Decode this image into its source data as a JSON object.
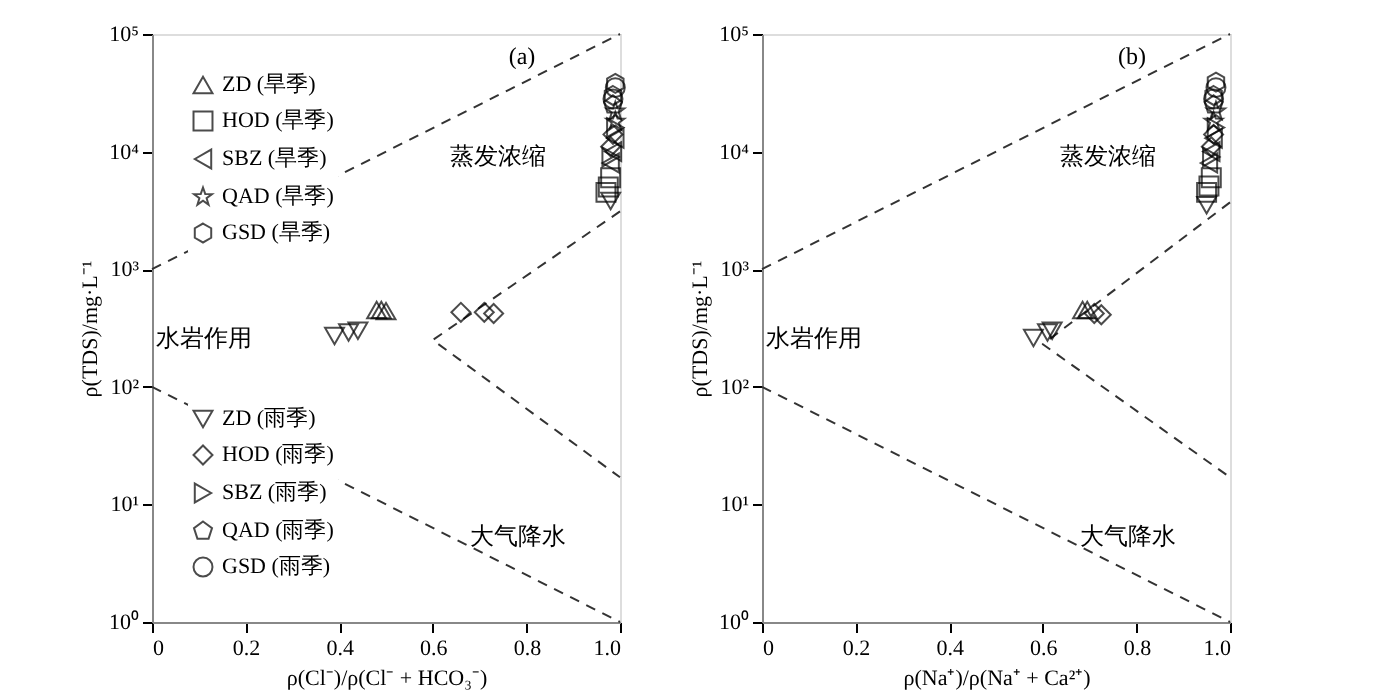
{
  "chart_data": [
    {
      "type": "scatter",
      "xlabel": "ρ(Cl⁻)/ρ(Cl⁻ + HCO₃⁻)",
      "ylabel": "ρ(TDS)/mg·L⁻¹",
      "log": "y",
      "grid": false,
      "legend": "left",
      "xlim": [
        0,
        1
      ],
      "xticks": [
        0,
        0.2,
        0.4,
        0.6,
        0.8,
        {
          "value": 1,
          "label": "1.0"
        }
      ],
      "ylim": [
        1,
        100000
      ],
      "yticks": [
        {
          "value": 1,
          "label": "10⁰"
        },
        {
          "value": 10,
          "label": "10¹"
        },
        {
          "value": 100,
          "label": "10²"
        },
        {
          "value": 1000,
          "label": "10³"
        },
        {
          "value": 10000,
          "label": "10⁴"
        },
        {
          "value": 100000,
          "label": "10⁵"
        }
      ],
      "annotations": [
        "(a)",
        "蒸发浓缩",
        "水岩作用",
        "大气降水"
      ],
      "series": [
        {
          "type": "line",
          "line_style": "dashed",
          "color": "#333333",
          "x": [
            0,
            1
          ],
          "values": [
            1000,
            100000
          ]
        },
        {
          "type": "line",
          "line_style": "dashed",
          "color": "#333333",
          "x": [
            0,
            1
          ],
          "values": [
            100,
            1
          ]
        },
        {
          "type": "line",
          "line_style": "dashed",
          "color": "#333333",
          "x": [
            1,
            0.6,
            1
          ],
          "values": [
            3100,
            250,
            17
          ]
        },
        {
          "name": "ZD (旱季)",
          "marker": "triangle-up",
          "color": "#000000",
          "x": [
            0.48,
            0.49,
            0.5
          ],
          "values": [
            450,
            450,
            440
          ]
        },
        {
          "name": "HOD (旱季)",
          "marker": "square",
          "color": "#000000",
          "x": [
            0.97,
            0.975,
            0.98
          ],
          "values": [
            4500,
            5000,
            6000
          ]
        },
        {
          "name": "SBZ (旱季)",
          "marker": "triangle-left",
          "color": "#000000",
          "x": [
            0.98,
            0.985,
            0.99
          ],
          "values": [
            8000,
            10000,
            13000
          ]
        },
        {
          "name": "QAD (旱季)",
          "marker": "star",
          "color": "#000000",
          "x": [
            0.99,
            0.99
          ],
          "values": [
            18000,
            22000
          ]
        },
        {
          "name": "GSD (旱季)",
          "color": "#000000",
          "x": [
            0.985,
            0.99
          ],
          "values": [
            30000,
            38000
          ]
        },
        {
          "name": "ZD (雨季)",
          "marker": "triangle-down",
          "color": "#000000",
          "x": [
            0.39,
            0.42,
            0.44,
            0.98
          ],
          "values": [
            270,
            290,
            300,
            3800
          ]
        },
        {
          "name": "HOD (雨季)",
          "marker": "diamond",
          "color": "#000000",
          "x": [
            0.66,
            0.71,
            0.73,
            0.98,
            0.985
          ],
          "values": [
            430,
            430,
            420,
            11000,
            14000
          ]
        },
        {
          "name": "SBZ (雨季)",
          "marker": "triangle-right",
          "color": "#000000",
          "x": [
            0.98,
            0.99
          ],
          "values": [
            9000,
            16000
          ]
        },
        {
          "name": "QAD (雨季)",
          "color": "#000000",
          "x": [
            0.985
          ],
          "values": [
            25000
          ]
        },
        {
          "name": "GSD (雨季)",
          "marker": "circle",
          "color": "#000000",
          "x": [
            0.985,
            0.99
          ],
          "values": [
            28000,
            35000
          ]
        }
      ]
    },
    {
      "type": "scatter",
      "xlabel": "ρ(Na⁺)/ρ(Na⁺ + Ca²⁺)",
      "ylabel": "ρ(TDS)/mg·L⁻¹",
      "log": "y",
      "grid": false,
      "xlim": [
        0,
        1
      ],
      "xticks": [
        0,
        0.2,
        0.4,
        0.6,
        0.8,
        {
          "value": 1,
          "label": "1.0"
        }
      ],
      "ylim": [
        1,
        100000
      ],
      "yticks": [
        {
          "value": 1,
          "label": "10⁰"
        },
        {
          "value": 10,
          "label": "10¹"
        },
        {
          "value": 100,
          "label": "10²"
        },
        {
          "value": 1000,
          "label": "10³"
        },
        {
          "value": 10000,
          "label": "10⁴"
        },
        {
          "value": 100000,
          "label": "10⁵"
        }
      ],
      "annotations": [
        "(b)",
        "蒸发浓缩",
        "水岩作用",
        "大气降水"
      ],
      "series": [
        {
          "type": "line",
          "line_style": "dashed",
          "color": "#333333",
          "x": [
            0,
            1
          ],
          "values": [
            1000,
            100000
          ]
        },
        {
          "type": "line",
          "line_style": "dashed",
          "color": "#333333",
          "x": [
            0,
            1
          ],
          "values": [
            100,
            1
          ]
        },
        {
          "type": "line",
          "line_style": "dashed",
          "color": "#333333",
          "x": [
            1,
            0.6,
            1
          ],
          "values": [
            3700,
            230,
            17
          ]
        },
        {
          "marker": "triangle-up",
          "color": "#000000",
          "x": [
            0.685,
            0.695
          ],
          "values": [
            450,
            450
          ]
        },
        {
          "marker": "square",
          "color": "#000000",
          "x": [
            0.95,
            0.955,
            0.96
          ],
          "values": [
            4500,
            5100,
            6000
          ]
        },
        {
          "marker": "triangle-left",
          "color": "#000000",
          "x": [
            0.955,
            0.96,
            0.965
          ],
          "values": [
            8000,
            10000,
            13000
          ]
        },
        {
          "marker": "star",
          "color": "#000000",
          "x": [
            0.965,
            0.97
          ],
          "values": [
            18000,
            22000
          ]
        },
        {
          "color": "#000000",
          "x": [
            0.965,
            0.97
          ],
          "values": [
            30000,
            39000
          ]
        },
        {
          "marker": "triangle-down",
          "color": "#000000",
          "x": [
            0.58,
            0.61,
            0.62,
            0.95
          ],
          "values": [
            260,
            290,
            300,
            3500
          ]
        },
        {
          "marker": "diamond",
          "color": "#000000",
          "x": [
            0.71,
            0.725,
            0.96,
            0.965
          ],
          "values": [
            420,
            410,
            11000,
            14000
          ]
        },
        {
          "marker": "triangle-right",
          "color": "#000000",
          "x": [
            0.96,
            0.97
          ],
          "values": [
            9000,
            16000
          ]
        },
        {
          "color": "#000000",
          "x": [
            0.965
          ],
          "values": [
            25000
          ]
        },
        {
          "marker": "circle",
          "color": "#000000",
          "x": [
            0.965,
            0.97
          ],
          "values": [
            28000,
            35000
          ]
        }
      ]
    }
  ]
}
